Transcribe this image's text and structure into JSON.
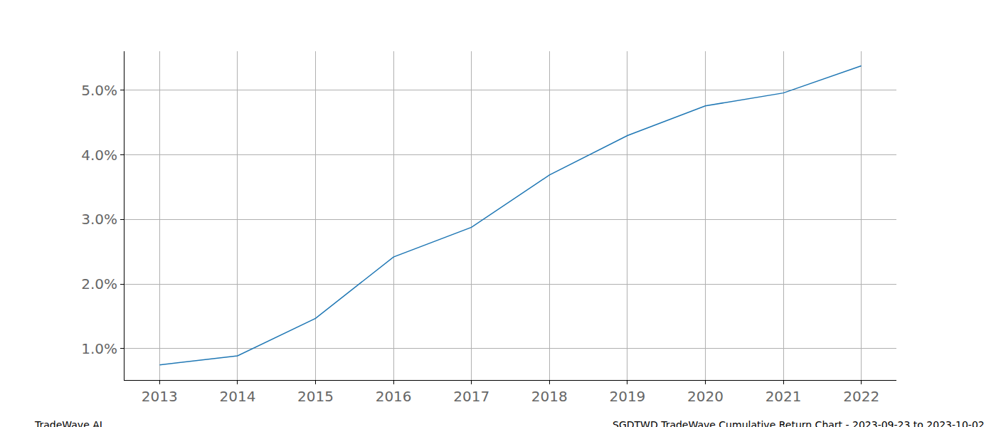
{
  "chart_data": {
    "type": "line",
    "x": [
      2013,
      2014,
      2015,
      2016,
      2017,
      2018,
      2019,
      2020,
      2021,
      2022
    ],
    "series": [
      {
        "color": "#1f77b4",
        "values": [
          0.75,
          0.89,
          1.47,
          2.42,
          2.88,
          3.69,
          4.3,
          4.76,
          4.96,
          5.38
        ]
      }
    ],
    "xlim": [
      2012.55,
      2022.45
    ],
    "xticks": [
      2013,
      2014,
      2015,
      2016,
      2017,
      2018,
      2019,
      2020,
      2021,
      2022
    ],
    "ylim": [
      0.515,
      5.606
    ],
    "yticks": [
      {
        "value": 1,
        "label": "1.0%"
      },
      {
        "value": 2,
        "label": "2.0%"
      },
      {
        "value": 3,
        "label": "3.0%"
      },
      {
        "value": 4,
        "label": "4.0%"
      },
      {
        "value": 5,
        "label": "5.0%"
      }
    ],
    "grid": true,
    "annotations": [
      "TradeWave.AI",
      "SGDTWD TradeWave Cumulative Return Chart - 2023-09-23 to 2023-10-02"
    ]
  }
}
